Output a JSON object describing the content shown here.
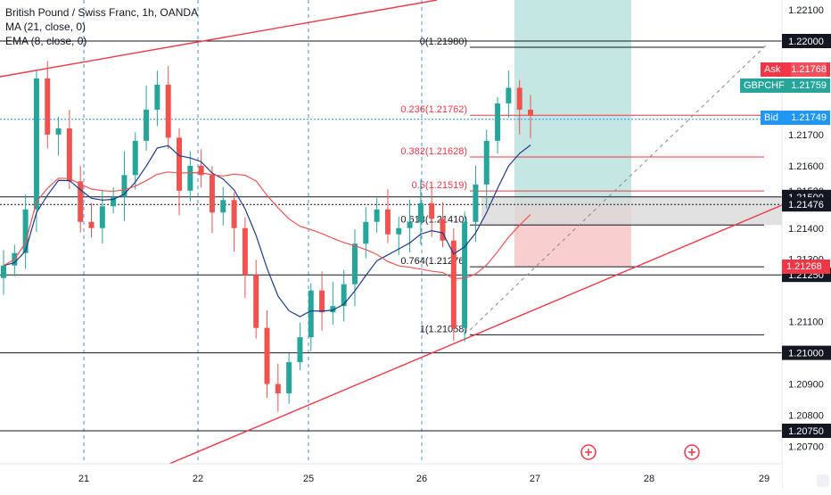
{
  "legend": {
    "title": "British Pound / Swiss Franc, 1h, OANDA",
    "ma": "MA (21, close, 0)",
    "ema": "EMA (8, close, 0)"
  },
  "colors": {
    "up": "#26a69a",
    "down": "#ef5350",
    "ma": "#1e3a8a",
    "ema": "#ef5350",
    "trend": "#f23645",
    "fib": "#f23645",
    "level": "#131722",
    "target_zone": "#b2dfdb",
    "stop_zone": "#f8c6c6",
    "grey_zone": "#d9d9d9",
    "session": "#4a90e2"
  },
  "price_tags": {
    "ask_label": "Ask",
    "ask_value": "1.21768",
    "pair_label": "GBPCHF",
    "pair_value": "1.21759",
    "bid_label": "Bid",
    "bid_value": "1.21749",
    "red_value": "1.21268"
  },
  "chart_data": {
    "type": "candlestick",
    "title": "British Pound / Swiss Franc, 1h, OANDA",
    "x_tick_labels": [
      "21",
      "22",
      "25",
      "26",
      "27",
      "28",
      "29"
    ],
    "y_tick_labels": [
      "1.22100",
      "1.22000",
      "1.21750",
      "1.21700",
      "1.21600",
      "1.21520",
      "1.21500",
      "1.21476",
      "1.21400",
      "1.21300",
      "1.21250",
      "1.21100",
      "1.21000",
      "1.20900",
      "1.20800",
      "1.20750",
      "1.20700"
    ],
    "ylim": [
      1.2068,
      1.2211
    ],
    "grid": false,
    "horizontal_levels": [
      1.22,
      1.215,
      1.21476,
      1.2125,
      1.21,
      1.2075
    ],
    "fib_levels": [
      {
        "label": "0(1.21980)",
        "value": 1.2198
      },
      {
        "label": "0.236(1.21762)",
        "value": 1.21762
      },
      {
        "label": "0.382(1.21628)",
        "value": 1.21628
      },
      {
        "label": "0.5(1.21519)",
        "value": 1.21519
      },
      {
        "label": "0.618(1.21410)",
        "value": 1.2141
      },
      {
        "label": "0.764(1.21276)",
        "value": 1.21276
      },
      {
        "label": "1(1.21058)",
        "value": 1.21058
      }
    ],
    "position_zone": {
      "entry": 1.21476,
      "target": 1.221,
      "stop": 1.21276
    },
    "indicators": [
      "MA (21, close, 0)",
      "EMA (8, close, 0)"
    ],
    "close_path": [
      1.2128,
      1.2132,
      1.2146,
      1.2188,
      1.217,
      1.2172,
      1.2155,
      1.2142,
      1.214,
      1.2147,
      1.215,
      1.2157,
      1.2168,
      1.2178,
      1.2186,
      1.2169,
      1.2152,
      1.216,
      1.2157,
      1.2145,
      1.2149,
      1.214,
      1.2125,
      1.2108,
      1.209,
      1.2087,
      1.2097,
      1.2105,
      1.212,
      1.2113,
      1.2115,
      1.2122,
      1.2135,
      1.2142,
      1.2146,
      1.2138,
      1.214,
      1.2142,
      1.2148,
      1.2143,
      1.2136,
      1.2108,
      1.2142,
      1.2154,
      1.2168,
      1.218,
      1.2185,
      1.2178,
      1.2176
    ],
    "last_price": 1.21759
  }
}
